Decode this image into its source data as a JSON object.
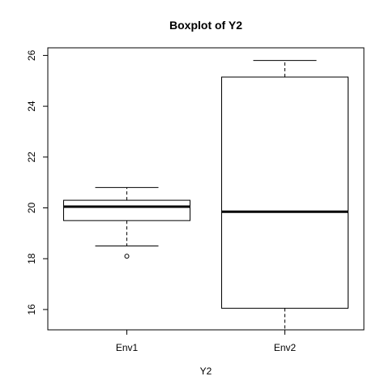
{
  "chart_data": {
    "type": "boxplot",
    "title": "Boxplot of Y2",
    "xlabel": "Y2",
    "ylabel": "",
    "ylim": [
      15.2,
      26.3
    ],
    "y_ticks": [
      16,
      18,
      20,
      22,
      24,
      26
    ],
    "y_tick_labels": [
      "16",
      "18",
      "20",
      "22",
      "24",
      "26"
    ],
    "categories": [
      "Env1",
      "Env2"
    ],
    "boxes": [
      {
        "name": "Env1",
        "whisker_low": 18.5,
        "q1": 19.5,
        "median": 20.05,
        "q3": 20.3,
        "whisker_high": 20.8,
        "outliers": [
          18.1
        ]
      },
      {
        "name": "Env2",
        "whisker_low": 15.2,
        "q1": 16.05,
        "median": 19.85,
        "q3": 25.15,
        "whisker_high": 25.8,
        "outliers": []
      }
    ],
    "grid": false,
    "legend": "none"
  }
}
